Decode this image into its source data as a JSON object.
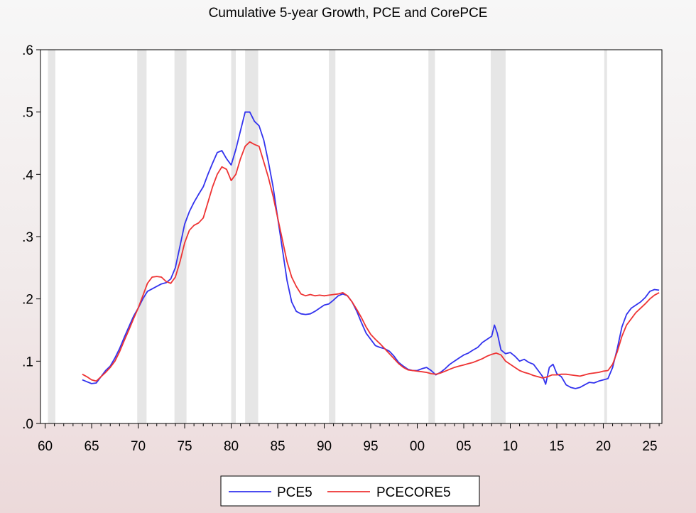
{
  "chart_data": {
    "type": "line",
    "title": "Cumulative 5-year Growth, PCE and CorePCE",
    "xlabel": "",
    "ylabel": "",
    "xlim": [
      1959.5,
      2026.3
    ],
    "ylim": [
      0,
      0.6
    ],
    "grid": false,
    "legend_position": "bottom-center",
    "x_tick_values": [
      1960,
      1965,
      1970,
      1975,
      1980,
      1985,
      1990,
      1995,
      2000,
      2005,
      2010,
      2015,
      2020,
      2025
    ],
    "x_tick_labels": [
      "60",
      "65",
      "70",
      "75",
      "80",
      "85",
      "90",
      "95",
      "00",
      "05",
      "10",
      "15",
      "20",
      "25"
    ],
    "y_tick_values": [
      0,
      0.1,
      0.2,
      0.3,
      0.4,
      0.5,
      0.6
    ],
    "y_tick_labels": [
      ".0",
      ".1",
      ".2",
      ".3",
      ".4",
      ".5",
      ".6"
    ],
    "recessions": [
      [
        1960.3,
        1961.1
      ],
      [
        1969.9,
        1970.9
      ],
      [
        1973.9,
        1975.2
      ],
      [
        1980.0,
        1980.5
      ],
      [
        1981.5,
        1982.9
      ],
      [
        1990.5,
        1991.2
      ],
      [
        2001.2,
        2001.9
      ],
      [
        2007.9,
        2009.5
      ],
      [
        2020.1,
        2020.4
      ]
    ],
    "series": [
      {
        "name": "PCE5",
        "color": "#3333ee",
        "points": [
          [
            1964.0,
            0.07
          ],
          [
            1964.5,
            0.067
          ],
          [
            1965.0,
            0.064
          ],
          [
            1965.5,
            0.065
          ],
          [
            1966.0,
            0.075
          ],
          [
            1966.5,
            0.085
          ],
          [
            1967.0,
            0.092
          ],
          [
            1967.5,
            0.105
          ],
          [
            1968.0,
            0.12
          ],
          [
            1968.5,
            0.138
          ],
          [
            1969.0,
            0.155
          ],
          [
            1969.5,
            0.172
          ],
          [
            1970.0,
            0.185
          ],
          [
            1970.5,
            0.2
          ],
          [
            1971.0,
            0.212
          ],
          [
            1971.5,
            0.216
          ],
          [
            1972.0,
            0.22
          ],
          [
            1972.5,
            0.224
          ],
          [
            1973.0,
            0.226
          ],
          [
            1973.5,
            0.232
          ],
          [
            1974.0,
            0.25
          ],
          [
            1974.5,
            0.285
          ],
          [
            1975.0,
            0.32
          ],
          [
            1975.5,
            0.34
          ],
          [
            1976.0,
            0.355
          ],
          [
            1976.5,
            0.368
          ],
          [
            1977.0,
            0.38
          ],
          [
            1977.5,
            0.4
          ],
          [
            1978.0,
            0.418
          ],
          [
            1978.5,
            0.435
          ],
          [
            1979.0,
            0.438
          ],
          [
            1979.5,
            0.425
          ],
          [
            1980.0,
            0.415
          ],
          [
            1980.5,
            0.44
          ],
          [
            1981.0,
            0.47
          ],
          [
            1981.5,
            0.5
          ],
          [
            1982.0,
            0.5
          ],
          [
            1982.5,
            0.485
          ],
          [
            1983.0,
            0.478
          ],
          [
            1983.5,
            0.455
          ],
          [
            1984.0,
            0.42
          ],
          [
            1984.5,
            0.38
          ],
          [
            1985.0,
            0.33
          ],
          [
            1985.5,
            0.28
          ],
          [
            1986.0,
            0.23
          ],
          [
            1986.5,
            0.195
          ],
          [
            1987.0,
            0.18
          ],
          [
            1987.5,
            0.176
          ],
          [
            1988.0,
            0.175
          ],
          [
            1988.5,
            0.176
          ],
          [
            1989.0,
            0.18
          ],
          [
            1989.5,
            0.185
          ],
          [
            1990.0,
            0.19
          ],
          [
            1990.5,
            0.192
          ],
          [
            1991.0,
            0.198
          ],
          [
            1991.5,
            0.205
          ],
          [
            1992.0,
            0.208
          ],
          [
            1992.5,
            0.205
          ],
          [
            1993.0,
            0.195
          ],
          [
            1993.5,
            0.18
          ],
          [
            1994.0,
            0.162
          ],
          [
            1994.5,
            0.145
          ],
          [
            1995.0,
            0.135
          ],
          [
            1995.5,
            0.125
          ],
          [
            1996.0,
            0.122
          ],
          [
            1996.5,
            0.12
          ],
          [
            1997.0,
            0.116
          ],
          [
            1997.5,
            0.108
          ],
          [
            1998.0,
            0.098
          ],
          [
            1998.5,
            0.092
          ],
          [
            1999.0,
            0.087
          ],
          [
            1999.5,
            0.085
          ],
          [
            2000.0,
            0.085
          ],
          [
            2000.5,
            0.088
          ],
          [
            2001.0,
            0.09
          ],
          [
            2001.5,
            0.085
          ],
          [
            2002.0,
            0.078
          ],
          [
            2002.5,
            0.082
          ],
          [
            2003.0,
            0.088
          ],
          [
            2003.5,
            0.095
          ],
          [
            2004.0,
            0.1
          ],
          [
            2004.5,
            0.105
          ],
          [
            2005.0,
            0.11
          ],
          [
            2005.5,
            0.113
          ],
          [
            2006.0,
            0.118
          ],
          [
            2006.5,
            0.122
          ],
          [
            2007.0,
            0.13
          ],
          [
            2007.5,
            0.135
          ],
          [
            2008.0,
            0.14
          ],
          [
            2008.3,
            0.158
          ],
          [
            2008.6,
            0.145
          ],
          [
            2009.0,
            0.118
          ],
          [
            2009.5,
            0.112
          ],
          [
            2010.0,
            0.114
          ],
          [
            2010.5,
            0.108
          ],
          [
            2011.0,
            0.1
          ],
          [
            2011.5,
            0.103
          ],
          [
            2012.0,
            0.098
          ],
          [
            2012.5,
            0.095
          ],
          [
            2013.0,
            0.085
          ],
          [
            2013.5,
            0.075
          ],
          [
            2013.8,
            0.063
          ],
          [
            2014.2,
            0.09
          ],
          [
            2014.6,
            0.095
          ],
          [
            2015.0,
            0.08
          ],
          [
            2015.5,
            0.075
          ],
          [
            2016.0,
            0.062
          ],
          [
            2016.5,
            0.058
          ],
          [
            2017.0,
            0.056
          ],
          [
            2017.5,
            0.058
          ],
          [
            2018.0,
            0.062
          ],
          [
            2018.5,
            0.066
          ],
          [
            2019.0,
            0.065
          ],
          [
            2019.5,
            0.068
          ],
          [
            2020.0,
            0.07
          ],
          [
            2020.5,
            0.072
          ],
          [
            2021.0,
            0.09
          ],
          [
            2021.5,
            0.12
          ],
          [
            2022.0,
            0.155
          ],
          [
            2022.5,
            0.175
          ],
          [
            2023.0,
            0.185
          ],
          [
            2023.5,
            0.19
          ],
          [
            2024.0,
            0.195
          ],
          [
            2024.5,
            0.202
          ],
          [
            2025.0,
            0.212
          ],
          [
            2025.5,
            0.215
          ],
          [
            2026.0,
            0.214
          ]
        ]
      },
      {
        "name": "PCECORE5",
        "color": "#ee3333",
        "points": [
          [
            1964.0,
            0.079
          ],
          [
            1964.5,
            0.075
          ],
          [
            1965.0,
            0.07
          ],
          [
            1965.5,
            0.068
          ],
          [
            1966.0,
            0.075
          ],
          [
            1966.5,
            0.082
          ],
          [
            1967.0,
            0.09
          ],
          [
            1967.5,
            0.1
          ],
          [
            1968.0,
            0.115
          ],
          [
            1968.5,
            0.133
          ],
          [
            1969.0,
            0.15
          ],
          [
            1969.5,
            0.168
          ],
          [
            1970.0,
            0.185
          ],
          [
            1970.5,
            0.205
          ],
          [
            1971.0,
            0.225
          ],
          [
            1971.5,
            0.235
          ],
          [
            1972.0,
            0.236
          ],
          [
            1972.5,
            0.235
          ],
          [
            1973.0,
            0.228
          ],
          [
            1973.5,
            0.225
          ],
          [
            1974.0,
            0.235
          ],
          [
            1974.5,
            0.26
          ],
          [
            1975.0,
            0.29
          ],
          [
            1975.5,
            0.31
          ],
          [
            1976.0,
            0.318
          ],
          [
            1976.5,
            0.322
          ],
          [
            1977.0,
            0.33
          ],
          [
            1977.5,
            0.355
          ],
          [
            1978.0,
            0.38
          ],
          [
            1978.5,
            0.4
          ],
          [
            1979.0,
            0.412
          ],
          [
            1979.5,
            0.408
          ],
          [
            1980.0,
            0.39
          ],
          [
            1980.5,
            0.4
          ],
          [
            1981.0,
            0.425
          ],
          [
            1981.5,
            0.445
          ],
          [
            1982.0,
            0.452
          ],
          [
            1982.5,
            0.448
          ],
          [
            1983.0,
            0.445
          ],
          [
            1983.5,
            0.42
          ],
          [
            1984.0,
            0.395
          ],
          [
            1984.5,
            0.365
          ],
          [
            1985.0,
            0.33
          ],
          [
            1985.5,
            0.295
          ],
          [
            1986.0,
            0.26
          ],
          [
            1986.5,
            0.235
          ],
          [
            1987.0,
            0.22
          ],
          [
            1987.5,
            0.208
          ],
          [
            1988.0,
            0.205
          ],
          [
            1988.5,
            0.207
          ],
          [
            1989.0,
            0.205
          ],
          [
            1989.5,
            0.206
          ],
          [
            1990.0,
            0.205
          ],
          [
            1990.5,
            0.206
          ],
          [
            1991.0,
            0.207
          ],
          [
            1991.5,
            0.208
          ],
          [
            1992.0,
            0.21
          ],
          [
            1992.5,
            0.205
          ],
          [
            1993.0,
            0.195
          ],
          [
            1993.5,
            0.183
          ],
          [
            1994.0,
            0.17
          ],
          [
            1994.5,
            0.155
          ],
          [
            1995.0,
            0.143
          ],
          [
            1995.5,
            0.135
          ],
          [
            1996.0,
            0.128
          ],
          [
            1996.5,
            0.12
          ],
          [
            1997.0,
            0.112
          ],
          [
            1997.5,
            0.104
          ],
          [
            1998.0,
            0.096
          ],
          [
            1998.5,
            0.09
          ],
          [
            1999.0,
            0.086
          ],
          [
            1999.5,
            0.085
          ],
          [
            2000.0,
            0.084
          ],
          [
            2000.5,
            0.083
          ],
          [
            2001.0,
            0.082
          ],
          [
            2001.5,
            0.08
          ],
          [
            2002.0,
            0.079
          ],
          [
            2002.5,
            0.081
          ],
          [
            2003.0,
            0.084
          ],
          [
            2003.5,
            0.087
          ],
          [
            2004.0,
            0.09
          ],
          [
            2004.5,
            0.092
          ],
          [
            2005.0,
            0.094
          ],
          [
            2005.5,
            0.096
          ],
          [
            2006.0,
            0.098
          ],
          [
            2006.5,
            0.101
          ],
          [
            2007.0,
            0.104
          ],
          [
            2007.5,
            0.108
          ],
          [
            2008.0,
            0.111
          ],
          [
            2008.5,
            0.113
          ],
          [
            2009.0,
            0.11
          ],
          [
            2009.5,
            0.1
          ],
          [
            2010.0,
            0.095
          ],
          [
            2010.5,
            0.09
          ],
          [
            2011.0,
            0.085
          ],
          [
            2011.5,
            0.082
          ],
          [
            2012.0,
            0.08
          ],
          [
            2012.5,
            0.077
          ],
          [
            2013.0,
            0.075
          ],
          [
            2013.5,
            0.073
          ],
          [
            2014.0,
            0.075
          ],
          [
            2014.5,
            0.078
          ],
          [
            2015.0,
            0.078
          ],
          [
            2015.5,
            0.079
          ],
          [
            2016.0,
            0.079
          ],
          [
            2016.5,
            0.078
          ],
          [
            2017.0,
            0.077
          ],
          [
            2017.5,
            0.076
          ],
          [
            2018.0,
            0.078
          ],
          [
            2018.5,
            0.08
          ],
          [
            2019.0,
            0.081
          ],
          [
            2019.5,
            0.082
          ],
          [
            2020.0,
            0.084
          ],
          [
            2020.5,
            0.085
          ],
          [
            2021.0,
            0.095
          ],
          [
            2021.5,
            0.115
          ],
          [
            2022.0,
            0.14
          ],
          [
            2022.5,
            0.158
          ],
          [
            2023.0,
            0.168
          ],
          [
            2023.5,
            0.178
          ],
          [
            2024.0,
            0.185
          ],
          [
            2024.5,
            0.192
          ],
          [
            2025.0,
            0.2
          ],
          [
            2025.5,
            0.206
          ],
          [
            2026.0,
            0.21
          ]
        ]
      }
    ]
  }
}
